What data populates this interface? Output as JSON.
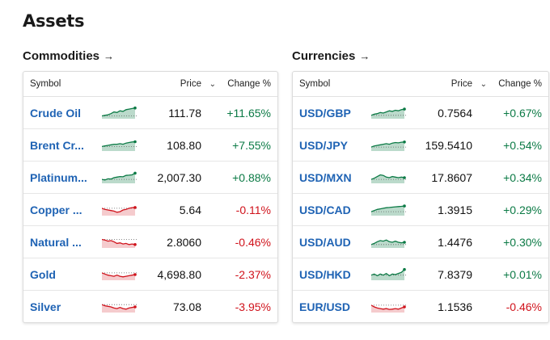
{
  "page_title": "Assets",
  "colors": {
    "up": "#0b7a45",
    "down": "#d0121b",
    "link": "#1f63b4"
  },
  "commodities": {
    "title": "Commodities",
    "arrow": "→",
    "headers": {
      "symbol": "Symbol",
      "price": "Price",
      "sort_icon": "⌄",
      "change": "Change %"
    },
    "rows": [
      {
        "symbol": "Crude Oil",
        "price": "111.78",
        "change": "+11.65%",
        "direction": "up"
      },
      {
        "symbol": "Brent Cr...",
        "price": "108.80",
        "change": "+7.55%",
        "direction": "up"
      },
      {
        "symbol": "Platinum...",
        "price": "2,007.30",
        "change": "+0.88%",
        "direction": "up"
      },
      {
        "symbol": "Copper ...",
        "price": "5.64",
        "change": "-0.11%",
        "direction": "down"
      },
      {
        "symbol": "Natural ...",
        "price": "2.8060",
        "change": "-0.46%",
        "direction": "down"
      },
      {
        "symbol": "Gold",
        "price": "4,698.80",
        "change": "-2.37%",
        "direction": "down"
      },
      {
        "symbol": "Silver",
        "price": "73.08",
        "change": "-3.95%",
        "direction": "down"
      }
    ]
  },
  "currencies": {
    "title": "Currencies",
    "arrow": "→",
    "headers": {
      "symbol": "Symbol",
      "price": "Price",
      "sort_icon": "⌄",
      "change": "Change %"
    },
    "rows": [
      {
        "symbol": "USD/GBP",
        "price": "0.7564",
        "change": "+0.67%",
        "direction": "up"
      },
      {
        "symbol": "USD/JPY",
        "price": "159.5410",
        "change": "+0.54%",
        "direction": "up"
      },
      {
        "symbol": "USD/MXN",
        "price": "17.8607",
        "change": "+0.34%",
        "direction": "up"
      },
      {
        "symbol": "USD/CAD",
        "price": "1.3915",
        "change": "+0.29%",
        "direction": "up"
      },
      {
        "symbol": "USD/AUD",
        "price": "1.4476",
        "change": "+0.30%",
        "direction": "up"
      },
      {
        "symbol": "USD/HKD",
        "price": "7.8379",
        "change": "+0.01%",
        "direction": "up"
      },
      {
        "symbol": "EUR/USD",
        "price": "1.1536",
        "change": "-0.46%",
        "direction": "down"
      }
    ]
  }
}
